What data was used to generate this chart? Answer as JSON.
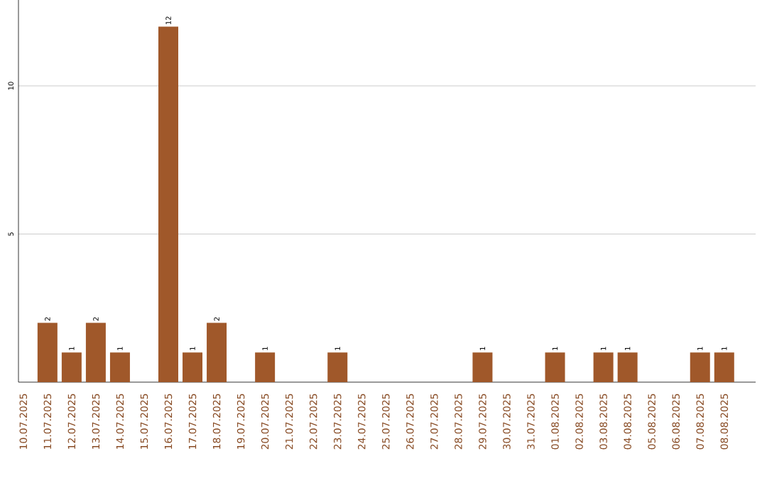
{
  "chart_data": {
    "type": "bar",
    "categories": [
      "10.07.2025",
      "11.07.2025",
      "12.07.2025",
      "13.07.2025",
      "14.07.2025",
      "15.07.2025",
      "16.07.2025",
      "17.07.2025",
      "18.07.2025",
      "19.07.2025",
      "20.07.2025",
      "21.07.2025",
      "22.07.2025",
      "23.07.2025",
      "24.07.2025",
      "25.07.2025",
      "26.07.2025",
      "27.07.2025",
      "28.07.2025",
      "29.07.2025",
      "30.07.2025",
      "31.07.2025",
      "01.08.2025",
      "02.08.2025",
      "03.08.2025",
      "04.08.2025",
      "05.08.2025",
      "06.08.2025",
      "07.08.2025",
      "08.08.2025"
    ],
    "values": [
      0,
      2,
      1,
      2,
      1,
      0,
      12,
      1,
      2,
      0,
      1,
      0,
      0,
      1,
      0,
      0,
      0,
      0,
      0,
      1,
      0,
      0,
      1,
      0,
      1,
      1,
      0,
      0,
      1,
      1
    ],
    "value_labels": [
      null,
      "2",
      "1",
      "2",
      "1",
      null,
      "12",
      "1",
      "2",
      null,
      "1",
      null,
      null,
      "1",
      null,
      null,
      null,
      null,
      null,
      "1",
      null,
      null,
      "1",
      null,
      "1",
      "1",
      null,
      null,
      "1",
      "1"
    ],
    "color": "#a0582a",
    "ylim": [
      0,
      12.9
    ],
    "yticks": [
      5,
      10
    ],
    "grid": "y"
  }
}
